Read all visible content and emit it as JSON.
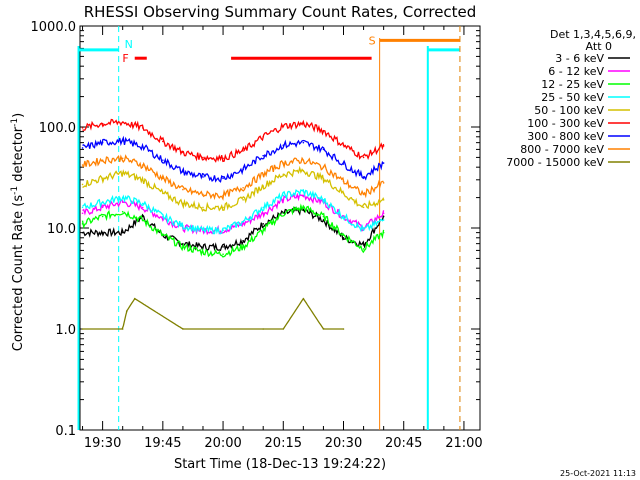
{
  "chart_data": {
    "type": "line",
    "title": "RHESSI Observing Summary Count Rates, Corrected",
    "xlabel": "Start Time (18-Dec-13 19:24:22)",
    "ylabel": "Corrected Count Rate (s",
    "ylabel_sup1": "-1",
    "ylabel_mid": " detector",
    "ylabel_sup2": "-1",
    "ylabel_end": ")",
    "yscale": "log",
    "ylim": [
      0.1,
      1000
    ],
    "xlim": [
      "19:24:22",
      "21:04:00"
    ],
    "grid": false,
    "yticks": [
      {
        "value": 1000,
        "label": "1000.0"
      },
      {
        "value": 100,
        "label": "100.0"
      },
      {
        "value": 10,
        "label": "10.0"
      },
      {
        "value": 1,
        "label": "1.0"
      },
      {
        "value": 0.1,
        "label": "0.1"
      }
    ],
    "xticks": [
      {
        "value": "19:30",
        "label": "19:30"
      },
      {
        "value": "19:45",
        "label": "19:45"
      },
      {
        "value": "20:00",
        "label": "20:00"
      },
      {
        "value": "20:15",
        "label": "20:15"
      },
      {
        "value": "20:30",
        "label": "20:30"
      },
      {
        "value": "20:45",
        "label": "20:45"
      },
      {
        "value": "21:00",
        "label": "21:00"
      }
    ],
    "legend_header": [
      "Det 1,3,4,5,6,9,",
      "Att 0"
    ],
    "legend_position": "right",
    "series": [
      {
        "name": "3 - 6 keV",
        "color": "#000000",
        "x": [
          "19:25",
          "19:30",
          "19:35",
          "19:40",
          "19:45",
          "19:50",
          "19:55",
          "20:00",
          "20:05",
          "20:10",
          "20:15",
          "20:20",
          "20:25",
          "20:30",
          "20:35",
          "20:40"
        ],
        "y": [
          9,
          9,
          9,
          13,
          8.5,
          7,
          6.5,
          6.5,
          7.5,
          11,
          14,
          15,
          12,
          8,
          6.8,
          13
        ]
      },
      {
        "name": "6 - 12 keV",
        "color": "#ff00ff",
        "x": [
          "19:25",
          "19:30",
          "19:35",
          "19:40",
          "19:45",
          "19:50",
          "19:55",
          "20:00",
          "20:05",
          "20:10",
          "20:15",
          "20:20",
          "20:25",
          "20:30",
          "20:35",
          "20:40"
        ],
        "y": [
          14,
          16,
          18,
          16,
          12.5,
          10,
          9.5,
          9.5,
          11,
          14,
          19,
          21,
          18,
          13,
          10,
          14
        ]
      },
      {
        "name": "12 - 25 keV",
        "color": "#00ff00",
        "x": [
          "19:25",
          "19:30",
          "19:35",
          "19:40",
          "19:45",
          "19:50",
          "19:55",
          "20:00",
          "20:05",
          "20:10",
          "20:15",
          "20:20",
          "20:25",
          "20:30",
          "20:35",
          "20:40"
        ],
        "y": [
          11,
          13,
          14.5,
          12,
          8.5,
          6.5,
          5.8,
          5.5,
          6.5,
          9.5,
          14,
          16,
          13,
          8.5,
          6.2,
          9
        ]
      },
      {
        "name": "25 - 50 keV",
        "color": "#00ffff",
        "x": [
          "19:25",
          "19:30",
          "19:35",
          "19:40",
          "19:45",
          "19:50",
          "19:55",
          "20:00",
          "20:05",
          "20:10",
          "20:15",
          "20:20",
          "20:25",
          "20:30",
          "20:35",
          "20:40"
        ],
        "y": [
          16,
          18,
          20,
          17.5,
          13,
          10.5,
          9.5,
          9.5,
          11.5,
          16,
          21,
          23,
          19,
          13,
          9.5,
          12
        ]
      },
      {
        "name": "50 - 100 keV",
        "color": "#d4c000",
        "x": [
          "19:25",
          "19:30",
          "19:35",
          "19:40",
          "19:45",
          "19:50",
          "19:55",
          "20:00",
          "20:05",
          "20:10",
          "20:15",
          "20:20",
          "20:25",
          "20:30",
          "20:35",
          "20:40"
        ],
        "y": [
          27,
          31,
          35,
          30,
          22,
          17.5,
          16,
          16,
          19,
          26,
          34,
          37,
          31,
          22,
          16,
          19
        ]
      },
      {
        "name": "100 - 300 keV",
        "color": "#ff0000",
        "x": [
          "19:25",
          "19:30",
          "19:35",
          "19:40",
          "19:45",
          "19:50",
          "19:55",
          "20:00",
          "20:05",
          "20:10",
          "20:15",
          "20:20",
          "20:25",
          "20:30",
          "20:35",
          "20:40"
        ],
        "y": [
          98,
          108,
          112,
          98,
          72,
          56,
          50,
          49,
          58,
          80,
          102,
          108,
          92,
          66,
          50,
          65
        ]
      },
      {
        "name": "300 - 800 keV",
        "color": "#0000ff",
        "x": [
          "19:25",
          "19:30",
          "19:35",
          "19:40",
          "19:45",
          "19:50",
          "19:55",
          "20:00",
          "20:05",
          "20:10",
          "20:15",
          "20:20",
          "20:25",
          "20:30",
          "20:35",
          "20:40"
        ],
        "y": [
          62,
          70,
          73,
          64,
          47,
          36,
          32,
          31,
          38,
          52,
          66,
          70,
          60,
          43,
          32,
          44
        ]
      },
      {
        "name": "800 - 7000 keV",
        "color": "#ff8000",
        "x": [
          "19:25",
          "19:30",
          "19:35",
          "19:40",
          "19:45",
          "19:50",
          "19:55",
          "20:00",
          "20:05",
          "20:10",
          "20:15",
          "20:20",
          "20:25",
          "20:30",
          "20:35",
          "20:40"
        ],
        "y": [
          42,
          47,
          49,
          42,
          31,
          24,
          21.5,
          21,
          25,
          34,
          44,
          47,
          40,
          29,
          21.5,
          28
        ]
      },
      {
        "name": "7000 - 15000 keV",
        "color": "#808000",
        "x": [
          "19:25",
          "19:35",
          "19:36",
          "19:38",
          "19:50",
          "20:10",
          "20:15",
          "20:20",
          "20:25",
          "20:30"
        ],
        "y": [
          1.0,
          1.0,
          1.5,
          2.0,
          1.0,
          1.0,
          1.0,
          2.0,
          1.0,
          1.0
        ]
      }
    ],
    "annotations": {
      "flare_bars": [
        [
          "19:38",
          "19:41"
        ],
        [
          "20:02",
          "20:37"
        ]
      ],
      "flare_label": "F",
      "night_bars": [
        [
          "19:24",
          "19:34"
        ],
        [
          "20:51",
          "20:59"
        ]
      ],
      "night_label": "N",
      "saa_bar": [
        "20:39",
        "20:59"
      ],
      "saa_label": "S"
    },
    "colors": {
      "night": "#00ffff",
      "saa": "#ff8000",
      "flare": "#ff0000",
      "atten": "#808000"
    }
  },
  "footer": {
    "timestamp": "25-Oct-2021 11:13"
  }
}
